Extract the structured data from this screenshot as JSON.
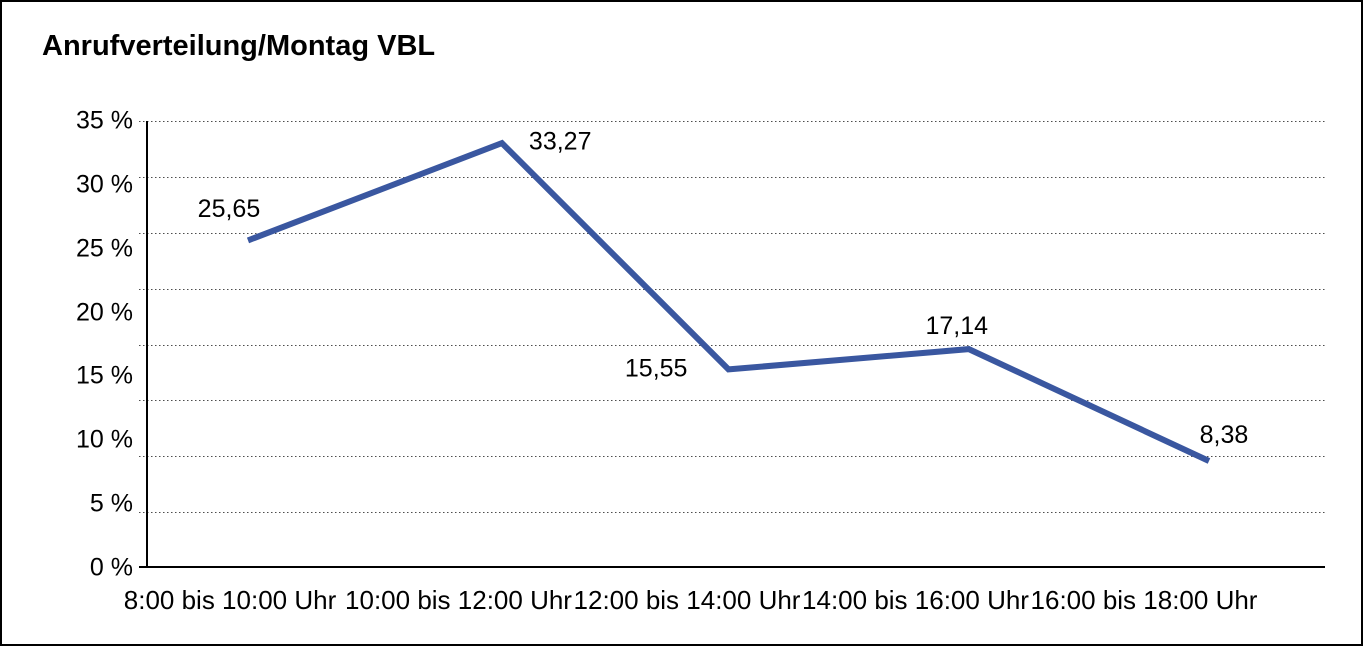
{
  "chart_data": {
    "type": "line",
    "title": "Anrufverteilung/Montag VBL",
    "categories": [
      "8:00 bis 10:00 Uhr",
      "10:00 bis 12:00 Uhr",
      "12:00 bis 14:00 Uhr",
      "14:00 bis 16:00 Uhr",
      "16:00 bis 18:00 Uhr"
    ],
    "values": [
      25.65,
      33.27,
      15.55,
      17.14,
      8.38
    ],
    "value_labels": [
      "25,65",
      "33,27",
      "15,55",
      "17,14",
      "8,38"
    ],
    "xlabel": "",
    "ylabel": "",
    "ylim": [
      0,
      35
    ],
    "y_tick_labels": [
      "35 %",
      "30 %",
      "25 %",
      "20 %",
      "15 %",
      "10 %",
      "5 %",
      "0 %"
    ],
    "y_tick_step": 5,
    "unit": "%",
    "decimal_separator": ",",
    "grid": {
      "horizontal": true,
      "style": "dotted",
      "intervals": 8,
      "vertical": false
    },
    "legend": "none",
    "colors": {
      "line": "#3A57A0",
      "text": "#000000",
      "grid": "#4D4D4D",
      "axis": "#000000",
      "background": "#FFFFFF",
      "frame_border": "#000000"
    }
  }
}
